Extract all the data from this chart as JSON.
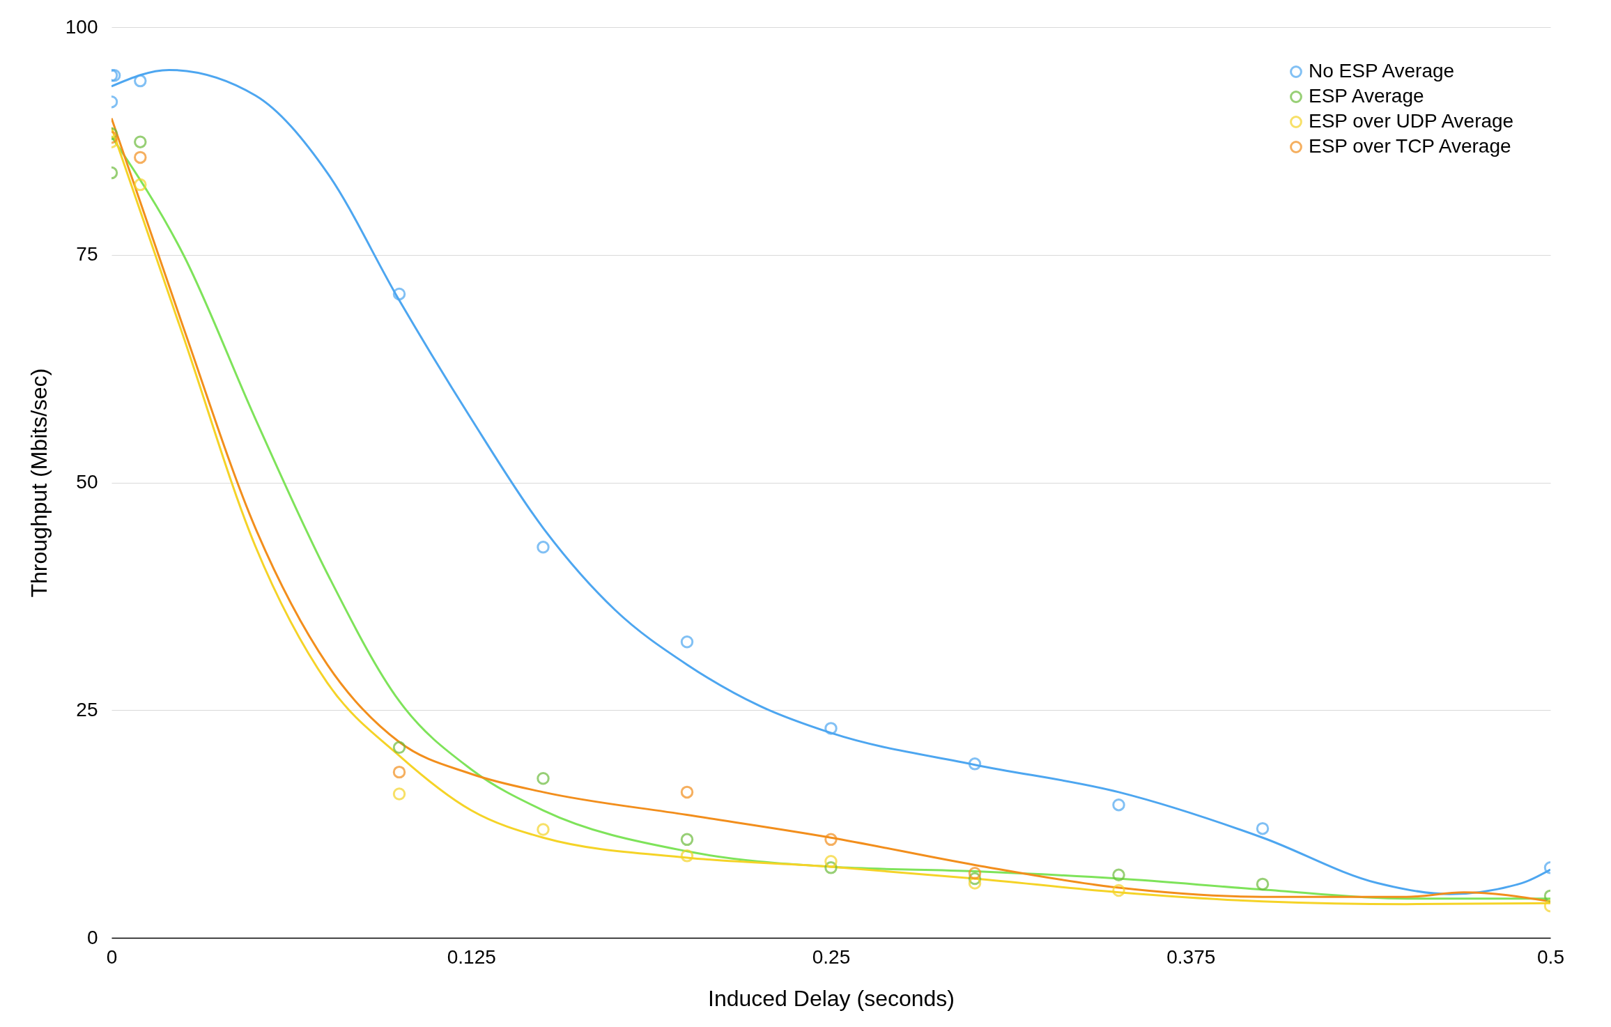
{
  "chart_data": {
    "type": "scatter",
    "xlabel": "Induced Delay (seconds)",
    "ylabel": "Throughput (Mbits/sec)",
    "xlim": [
      0,
      0.5
    ],
    "xticks": [
      0,
      0.125,
      0.25,
      0.375,
      0.5
    ],
    "ylim": [
      0,
      100
    ],
    "yticks": [
      0,
      25,
      50,
      75,
      100
    ],
    "grid": "y",
    "legend": "top right",
    "series": [
      {
        "name": "No ESP Average",
        "color": "#4da6f0",
        "marker": "circle",
        "x": [
          0,
          0,
          0.001,
          0.01,
          0.1,
          0.15,
          0.2,
          0.25,
          0.3,
          0.35,
          0.4,
          0.5
        ],
        "values": [
          91.8,
          94.7,
          94.7,
          94.1,
          70.7,
          42.9,
          32.5,
          23.0,
          19.1,
          14.6,
          12.0,
          7.7
        ]
      },
      {
        "name": "ESP Average",
        "color": "#6cbb3c",
        "marker": "circle",
        "x": [
          0,
          0,
          0.01,
          0.1,
          0.15,
          0.2,
          0.25,
          0.3,
          0.35,
          0.4,
          0.5
        ],
        "values": [
          84.0,
          88.3,
          87.4,
          20.9,
          17.5,
          10.8,
          7.7,
          6.5,
          6.9,
          5.9,
          4.6
        ]
      },
      {
        "name": "ESP over UDP Average",
        "color": "#f5d327",
        "marker": "circle",
        "x": [
          0,
          0.01,
          0.1,
          0.15,
          0.2,
          0.25,
          0.3,
          0.35,
          0.5
        ],
        "values": [
          87.4,
          82.7,
          15.8,
          11.9,
          9.0,
          8.4,
          6.0,
          5.2,
          3.5
        ]
      },
      {
        "name": "ESP over TCP Average",
        "color": "#f28e1c",
        "marker": "circle",
        "x": [
          0,
          0.01,
          0.1,
          0.2,
          0.25,
          0.3
        ],
        "values": [
          87.9,
          85.7,
          18.2,
          16.0,
          10.8,
          7.1
        ]
      },
      {
        "type": "line",
        "color": "#4da6f0",
        "marker": "none",
        "x": [
          0,
          0.02,
          0.05,
          0.075,
          0.1,
          0.125,
          0.15,
          0.175,
          0.2,
          0.225,
          0.25,
          0.3,
          0.35,
          0.4,
          0.44,
          0.465,
          0.49,
          0.5
        ],
        "values": [
          93.5,
          95.3,
          92.5,
          84,
          70,
          57,
          45,
          36,
          30,
          25.5,
          22.5,
          19,
          16,
          11,
          6,
          4.8,
          6,
          7.5
        ]
      },
      {
        "type": "line",
        "color": "#7ee35a",
        "marker": "none",
        "x": [
          0,
          0.025,
          0.05,
          0.075,
          0.1,
          0.125,
          0.15,
          0.2,
          0.25,
          0.3,
          0.35,
          0.4,
          0.45,
          0.5
        ],
        "values": [
          88,
          75,
          57,
          40,
          26,
          18.5,
          14,
          9.5,
          7.8,
          7.3,
          6.5,
          5.3,
          4.3,
          4.3
        ]
      },
      {
        "type": "line",
        "color": "#f5d327",
        "marker": "none",
        "x": [
          0,
          0.025,
          0.05,
          0.075,
          0.1,
          0.125,
          0.15,
          0.2,
          0.25,
          0.3,
          0.35,
          0.4,
          0.45,
          0.5
        ],
        "values": [
          89,
          66,
          43,
          28,
          20,
          14,
          11,
          8.8,
          7.8,
          6.5,
          5,
          4,
          3.7,
          3.8
        ]
      },
      {
        "type": "line",
        "color": "#f28e1c",
        "marker": "none",
        "x": [
          0,
          0.025,
          0.05,
          0.075,
          0.1,
          0.125,
          0.15,
          0.2,
          0.25,
          0.3,
          0.35,
          0.4,
          0.45,
          0.47,
          0.5
        ],
        "values": [
          90,
          67,
          45,
          30,
          21.5,
          18,
          16,
          13.5,
          11,
          8,
          5.5,
          4.5,
          4.5,
          5,
          4
        ]
      }
    ]
  }
}
